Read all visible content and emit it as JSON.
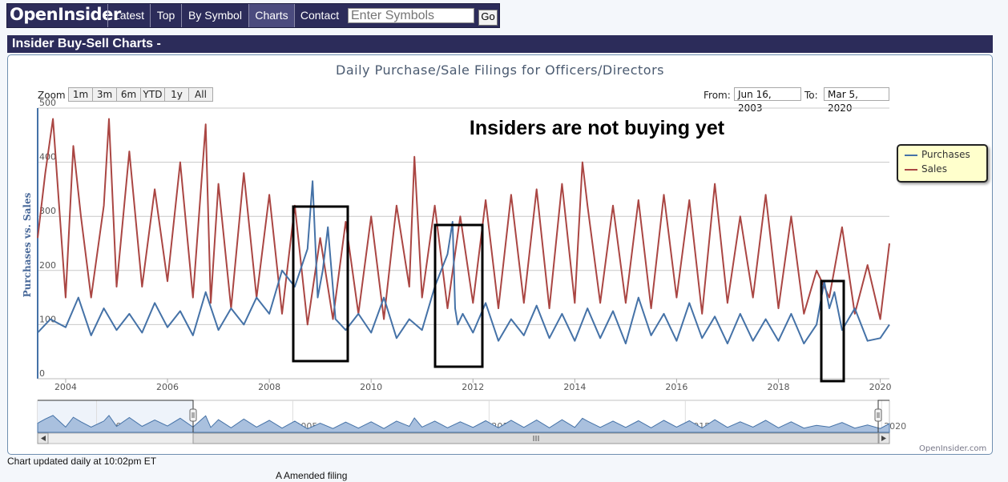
{
  "nav": {
    "logo": "OpenInsider",
    "items": [
      {
        "label": "Latest",
        "active": false
      },
      {
        "label": "Top",
        "active": false
      },
      {
        "label": "By Symbol",
        "active": false
      },
      {
        "label": "Charts",
        "active": true
      },
      {
        "label": "Contact",
        "active": false
      }
    ],
    "search_placeholder": "Enter Symbols",
    "go_label": "Go"
  },
  "header": {
    "title": "Insider Buy-Sell Charts -"
  },
  "toolbar": {
    "zoom_label": "Zoom",
    "zoom_buttons": [
      "1m",
      "3m",
      "6m",
      "YTD",
      "1y",
      "All"
    ],
    "from_label": "From:",
    "from_value": "Jun 16, 2003",
    "to_label": "To:",
    "to_value": "Mar 5, 2020"
  },
  "chart_data": {
    "type": "line",
    "title": "Daily Purchase/Sale Filings for Officers/Directors",
    "ylabel": "Purchases vs. Sales",
    "xlabel": "",
    "annotation": "Insiders are not buying yet",
    "xlim": [
      2003.45,
      2020.18
    ],
    "ylim": [
      0,
      500
    ],
    "yticks": [
      0,
      100,
      200,
      300,
      400,
      500
    ],
    "xticks": [
      2004,
      2006,
      2008,
      2010,
      2012,
      2014,
      2016,
      2018,
      2020
    ],
    "grid": true,
    "legend_position": "right",
    "series": [
      {
        "name": "Purchases",
        "color": "#4572a7",
        "x": [
          2003.45,
          2003.7,
          2004.0,
          2004.25,
          2004.5,
          2004.75,
          2005.0,
          2005.25,
          2005.5,
          2005.75,
          2006.0,
          2006.25,
          2006.5,
          2006.75,
          2007.0,
          2007.25,
          2007.5,
          2007.75,
          2008.0,
          2008.25,
          2008.5,
          2008.75,
          2008.85,
          2008.95,
          2009.05,
          2009.15,
          2009.3,
          2009.5,
          2009.75,
          2010.0,
          2010.25,
          2010.5,
          2010.75,
          2011.0,
          2011.25,
          2011.5,
          2011.6,
          2011.65,
          2011.7,
          2011.8,
          2012.0,
          2012.25,
          2012.5,
          2012.75,
          2013.0,
          2013.25,
          2013.5,
          2013.75,
          2014.0,
          2014.25,
          2014.5,
          2014.75,
          2015.0,
          2015.25,
          2015.5,
          2015.75,
          2016.0,
          2016.25,
          2016.5,
          2016.75,
          2017.0,
          2017.25,
          2017.5,
          2017.75,
          2018.0,
          2018.25,
          2018.5,
          2018.75,
          2018.9,
          2019.0,
          2019.1,
          2019.25,
          2019.5,
          2019.75,
          2020.0,
          2020.18
        ],
        "values": [
          85,
          110,
          95,
          150,
          80,
          130,
          90,
          120,
          85,
          140,
          95,
          125,
          80,
          160,
          90,
          130,
          100,
          150,
          120,
          200,
          170,
          240,
          365,
          150,
          200,
          280,
          110,
          90,
          120,
          85,
          150,
          75,
          110,
          90,
          170,
          230,
          290,
          130,
          100,
          120,
          85,
          140,
          70,
          110,
          80,
          135,
          75,
          120,
          70,
          130,
          75,
          125,
          65,
          150,
          80,
          120,
          70,
          140,
          75,
          115,
          65,
          120,
          70,
          110,
          70,
          120,
          65,
          100,
          180,
          130,
          160,
          90,
          130,
          70,
          75,
          100
        ]
      },
      {
        "name": "Sales",
        "color": "#aa4643",
        "x": [
          2003.45,
          2003.6,
          2003.75,
          2004.0,
          2004.15,
          2004.3,
          2004.5,
          2004.75,
          2004.85,
          2005.0,
          2005.25,
          2005.5,
          2005.75,
          2006.0,
          2006.25,
          2006.5,
          2006.75,
          2006.85,
          2007.0,
          2007.25,
          2007.5,
          2007.75,
          2008.0,
          2008.25,
          2008.5,
          2008.75,
          2009.0,
          2009.25,
          2009.5,
          2009.75,
          2010.0,
          2010.25,
          2010.5,
          2010.75,
          2010.85,
          2011.0,
          2011.25,
          2011.5,
          2011.75,
          2012.0,
          2012.25,
          2012.5,
          2012.75,
          2013.0,
          2013.25,
          2013.5,
          2013.75,
          2014.0,
          2014.15,
          2014.25,
          2014.5,
          2014.75,
          2015.0,
          2015.25,
          2015.5,
          2015.75,
          2016.0,
          2016.25,
          2016.5,
          2016.75,
          2017.0,
          2017.25,
          2017.5,
          2017.75,
          2018.0,
          2018.25,
          2018.5,
          2018.75,
          2019.0,
          2019.25,
          2019.5,
          2019.75,
          2020.0,
          2020.18
        ],
        "values": [
          260,
          380,
          480,
          150,
          430,
          300,
          150,
          320,
          480,
          170,
          420,
          170,
          350,
          180,
          400,
          150,
          470,
          140,
          360,
          130,
          380,
          150,
          340,
          120,
          320,
          100,
          260,
          110,
          290,
          120,
          300,
          110,
          320,
          170,
          410,
          150,
          320,
          130,
          300,
          140,
          330,
          130,
          340,
          140,
          350,
          130,
          360,
          140,
          400,
          320,
          140,
          320,
          140,
          330,
          130,
          340,
          150,
          330,
          120,
          360,
          140,
          300,
          150,
          340,
          130,
          300,
          120,
          200,
          150,
          280,
          120,
          210,
          110,
          250
        ]
      }
    ]
  },
  "navigator": {
    "labels": [
      "2000",
      "2005",
      "2010",
      "2015",
      "2020"
    ]
  },
  "credit": "OpenInsider.com",
  "footer": {
    "updated": "Chart updated daily at 10:02pm ET",
    "amended": "A  Amended filing"
  }
}
